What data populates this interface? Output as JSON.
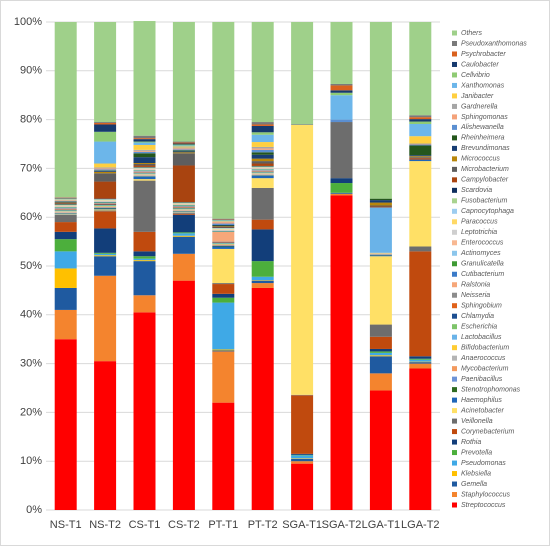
{
  "chart_data": {
    "type": "bar",
    "stacked": true,
    "categories": [
      "NS-T1",
      "NS-T2",
      "CS-T1",
      "CS-T2",
      "PT-T1",
      "PT-T2",
      "SGA-T1",
      "SGA-T2",
      "LGA-T1",
      "LGA-T2"
    ],
    "ylim": [
      0,
      100
    ],
    "yticks": [
      {
        "value": 0,
        "label": "0%"
      },
      {
        "value": 10,
        "label": "10%"
      },
      {
        "value": 20,
        "label": "20%"
      },
      {
        "value": 30,
        "label": "30%"
      },
      {
        "value": 40,
        "label": "40%"
      },
      {
        "value": 50,
        "label": "50%"
      },
      {
        "value": 60,
        "label": "60%"
      },
      {
        "value": 70,
        "label": "70%"
      },
      {
        "value": 80,
        "label": "80%"
      },
      {
        "value": 90,
        "label": "90%"
      },
      {
        "value": 100,
        "label": "100%"
      }
    ],
    "grid": true,
    "legend": "right",
    "series": [
      {
        "name": "Streptococcus",
        "color": "#ff0000",
        "values": [
          35,
          30.5,
          40.5,
          47,
          22,
          45.5,
          9.5,
          64.5,
          24.5,
          29
        ]
      },
      {
        "name": "Staphylococcus",
        "color": "#f4842e",
        "values": [
          6,
          17.5,
          3.5,
          5.5,
          10.5,
          1,
          0.5,
          0.3,
          3.5,
          1
        ]
      },
      {
        "name": "Gemella",
        "color": "#1f5aa0",
        "values": [
          4.5,
          4,
          7,
          3.5,
          0.2,
          0.5,
          0.5,
          0.2,
          3.5,
          0.3
        ]
      },
      {
        "name": "Klebsiella",
        "color": "#ffc000",
        "values": [
          4,
          0.2,
          0.2,
          0.2,
          0.2,
          0.1,
          0.1,
          0,
          0.2,
          0.1
        ]
      },
      {
        "name": "Pseudomonas",
        "color": "#3fa9e6",
        "values": [
          3.5,
          0.3,
          0.3,
          0.5,
          9.6,
          0.7,
          0.6,
          0,
          0.5,
          0.4
        ]
      },
      {
        "name": "Prevotella",
        "color": "#4caf3c",
        "values": [
          2.5,
          0.2,
          0.5,
          0.2,
          1,
          3.2,
          0.1,
          2,
          0.3,
          0.2
        ]
      },
      {
        "name": "Rothia",
        "color": "#123e7a",
        "values": [
          1.5,
          5,
          1,
          3.6,
          0.8,
          6.5,
          0.2,
          1,
          0.5,
          0.5
        ]
      },
      {
        "name": "Corynebacterium",
        "color": "#c04a0e",
        "values": [
          2,
          3.5,
          4,
          0.2,
          2,
          2,
          12,
          0,
          2.5,
          21.5
        ]
      },
      {
        "name": "Veillonella",
        "color": "#6d6d6d",
        "values": [
          1.5,
          0.2,
          10.5,
          0.2,
          0.2,
          6.5,
          0.1,
          11.5,
          2.5,
          1
        ]
      },
      {
        "name": "Acinetobacter",
        "color": "#ffe066",
        "values": [
          0.1,
          0.2,
          0.3,
          0.1,
          7,
          2,
          55.4,
          0,
          14,
          17.5
        ]
      },
      {
        "name": "Haemophilus",
        "color": "#1f66b8",
        "values": [
          0.1,
          0.2,
          0.5,
          0.1,
          0.5,
          0.5,
          0.1,
          0,
          0.2,
          0.3
        ]
      },
      {
        "name": "Stenotrophomonas",
        "color": "#2f6b22",
        "values": [
          0.1,
          0.1,
          0.1,
          0.1,
          0.1,
          0.1,
          0,
          0,
          0.1,
          0
        ]
      },
      {
        "name": "Paenibacillus",
        "color": "#6d93d6",
        "values": [
          0.1,
          0.1,
          0.1,
          0.1,
          0.1,
          0.1,
          0,
          0,
          0.1,
          0
        ]
      },
      {
        "name": "Mycobacterium",
        "color": "#f39a5e",
        "values": [
          0.1,
          0.1,
          0.1,
          0.1,
          0.1,
          0.1,
          0,
          0,
          0.1,
          0
        ]
      },
      {
        "name": "Anaerococcus",
        "color": "#b4b4b4",
        "values": [
          0.1,
          0.1,
          0.1,
          0.1,
          0.1,
          0.1,
          0,
          0,
          0.1,
          0
        ]
      },
      {
        "name": "Bifidobacterium",
        "color": "#ffcc33",
        "values": [
          0.1,
          0.1,
          0.1,
          0.1,
          0.1,
          0.1,
          0,
          0,
          0.1,
          0
        ]
      },
      {
        "name": "Lactobacillus",
        "color": "#6ab3e8",
        "values": [
          0.1,
          0.1,
          0.1,
          0.1,
          0.1,
          0.1,
          0,
          0,
          9.3,
          0
        ]
      },
      {
        "name": "Escherichia",
        "color": "#7ec46a",
        "values": [
          0.1,
          0.1,
          0.1,
          0.1,
          0.1,
          0.1,
          0,
          0,
          0,
          0
        ]
      },
      {
        "name": "Chlamydia",
        "color": "#1d4f91",
        "values": [
          0.1,
          0.1,
          0.1,
          0.1,
          0.1,
          0.1,
          0,
          0,
          0,
          0
        ]
      },
      {
        "name": "Sphingobium",
        "color": "#e0621a",
        "values": [
          0.1,
          0.1,
          0.1,
          0.1,
          0.1,
          0.1,
          0,
          0,
          0,
          0
        ]
      },
      {
        "name": "Neisseria",
        "color": "#8c8c8c",
        "values": [
          0.1,
          0.1,
          0.1,
          0.1,
          0.1,
          0.1,
          0,
          0,
          0,
          0
        ]
      },
      {
        "name": "Ralstonia",
        "color": "#f6a77a",
        "values": [
          0.1,
          0.1,
          0.1,
          0.1,
          2,
          0.1,
          0,
          0,
          0,
          0
        ]
      },
      {
        "name": "Cutibacterium",
        "color": "#3b7bc8",
        "values": [
          0.1,
          0.1,
          0.1,
          0.1,
          0.1,
          0.1,
          0,
          0,
          0,
          0
        ]
      },
      {
        "name": "Granulicatella",
        "color": "#3f9a35",
        "values": [
          0.1,
          0.1,
          0.1,
          0.1,
          0.1,
          0.1,
          0,
          0,
          0,
          0
        ]
      },
      {
        "name": "Actinomyces",
        "color": "#8cc6ec",
        "values": [
          0.1,
          0.1,
          0.1,
          0.1,
          0.1,
          0.1,
          0,
          0,
          0,
          0
        ]
      },
      {
        "name": "Enterococcus",
        "color": "#f8b892",
        "values": [
          0.1,
          0.1,
          0.1,
          0.1,
          0.1,
          0.1,
          0,
          0,
          0,
          0
        ]
      },
      {
        "name": "Leptotrichia",
        "color": "#cfcfcf",
        "values": [
          0.1,
          0.1,
          0.1,
          0.1,
          0.1,
          0.1,
          0,
          0,
          0,
          0
        ]
      },
      {
        "name": "Paracoccus",
        "color": "#ffd966",
        "values": [
          0.1,
          0.1,
          0.1,
          0.1,
          0.1,
          0.1,
          0,
          0,
          0,
          0
        ]
      },
      {
        "name": "Capnocytophaga",
        "color": "#9dcdf0",
        "values": [
          0.1,
          0.1,
          0.1,
          0.1,
          0.1,
          0.1,
          0,
          0,
          0,
          0
        ]
      },
      {
        "name": "Fusobacterium",
        "color": "#a9d38f",
        "values": [
          0.1,
          0.1,
          0.1,
          0.1,
          0.1,
          0.1,
          0,
          0,
          0,
          0
        ]
      },
      {
        "name": "Scardovia",
        "color": "#0f2f5e",
        "values": [
          0.1,
          0.1,
          0.1,
          0.1,
          0.1,
          0.1,
          0,
          0,
          0,
          0
        ]
      },
      {
        "name": "Campylobacter",
        "color": "#a94410",
        "values": [
          0.1,
          3.5,
          0.3,
          7.5,
          0.1,
          0.5,
          0,
          0,
          0.2,
          0.3
        ]
      },
      {
        "name": "Microbacterium",
        "color": "#5e5e5e",
        "values": [
          0.1,
          1.7,
          0.3,
          2.5,
          0.1,
          0.5,
          0,
          0,
          0.2,
          0.2
        ]
      },
      {
        "name": "Micrococcus",
        "color": "#b8860b",
        "values": [
          0.1,
          0.3,
          0.2,
          0.2,
          0.1,
          0.5,
          0,
          0,
          0.6,
          0.2
        ]
      },
      {
        "name": "Brevundimonas",
        "color": "#173d73",
        "values": [
          0.1,
          0.2,
          1.2,
          0.2,
          0.1,
          0.8,
          0,
          0,
          0.5,
          0.2
        ]
      },
      {
        "name": "Rheinheimera",
        "color": "#24561c",
        "values": [
          0.1,
          0.1,
          0.8,
          0.2,
          0.1,
          0.5,
          0,
          0,
          0.3,
          2
        ]
      },
      {
        "name": "Alishewanella",
        "color": "#5b8fd1",
        "values": [
          0.1,
          0.2,
          0.3,
          0.2,
          0.3,
          0.5,
          0,
          0.5,
          0,
          0.2
        ]
      },
      {
        "name": "Sphingomonas",
        "color": "#f4a27a",
        "values": [
          0.1,
          0.2,
          0.2,
          0.2,
          0.3,
          0.3,
          0,
          0,
          0,
          0.1
        ]
      },
      {
        "name": "Gardnerella",
        "color": "#a6a6a6",
        "values": [
          0.1,
          0.2,
          0.2,
          0.2,
          0.1,
          0.3,
          0,
          0,
          0,
          0.1
        ]
      },
      {
        "name": "Janibacter",
        "color": "#ffcf40",
        "values": [
          0.1,
          0.8,
          1,
          0.2,
          0.1,
          1,
          0,
          0,
          0,
          1.5
        ]
      },
      {
        "name": "Xanthomonas",
        "color": "#6cb6ea",
        "values": [
          0.1,
          4.5,
          0.5,
          0.2,
          0.1,
          1.5,
          0,
          5,
          0,
          2.5
        ]
      },
      {
        "name": "Cellvibrio",
        "color": "#8fcb74",
        "values": [
          0.1,
          2,
          0.2,
          0.2,
          0.1,
          0.5,
          0,
          0.5,
          0,
          0.5
        ]
      },
      {
        "name": "Caulobacter",
        "color": "#163a6e",
        "values": [
          0.1,
          1.5,
          0.5,
          0.2,
          0.1,
          1.3,
          0,
          0.5,
          0,
          0.5
        ]
      },
      {
        "name": "Psychrobacter",
        "color": "#d9611e",
        "values": [
          0.1,
          0.3,
          0.2,
          0.2,
          0.1,
          0.3,
          0,
          1,
          0,
          0.4
        ]
      },
      {
        "name": "Pseudoxanthomonas",
        "color": "#7a7a7a",
        "values": [
          0.1,
          0.2,
          0.5,
          0.2,
          0.1,
          0.5,
          0,
          0.3,
          0,
          0.4
        ]
      },
      {
        "name": "Others",
        "color": "#9fd08a",
        "values": [
          35.9,
          20.5,
          23.5,
          24.5,
          40.3,
          20.5,
          20.9,
          12.7,
          36.2,
          19.1
        ]
      }
    ]
  }
}
